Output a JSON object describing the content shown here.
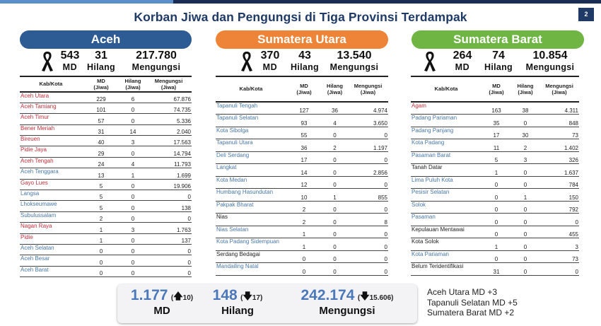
{
  "header": {
    "title": "Korban Jiwa dan Pengungsi di Tiga Provinsi Terdampak",
    "page_number": "2"
  },
  "colors": {
    "aceh": "#2d5b94",
    "sumut": "#ee8437",
    "sumbar": "#6fb544",
    "red_text": "#c0303b",
    "blue_text": "#4a78a8",
    "summary_number": "#4a78b8",
    "title": "#1f3a66"
  },
  "columns": {
    "kab": "Kab/Kota",
    "md": [
      "MD",
      "(Jiwa)"
    ],
    "hilang": [
      "Hilang",
      "(Jiwa)"
    ],
    "mengungsi": [
      "Mengungsi",
      "(Jiwa)"
    ]
  },
  "provinces": [
    {
      "name": "Aceh",
      "icon": "black-ribbon-icon",
      "md": "543",
      "md_label": "MD",
      "hilang": "31",
      "hilang_label": "Hilang",
      "mengungsi": "217.780",
      "mengungsi_label": "Mengungsi",
      "rows": [
        {
          "name": "Aceh Utara",
          "md": "229",
          "hilang": "6",
          "mengungsi": "67.876",
          "color": "red"
        },
        {
          "name": "Aceh Tamiang",
          "md": "101",
          "hilang": "0",
          "mengungsi": "74.735",
          "color": "red"
        },
        {
          "name": "Aceh Timur",
          "md": "57",
          "hilang": "0",
          "mengungsi": "5.336",
          "color": "red"
        },
        {
          "name": "Bener Meriah",
          "md": "31",
          "hilang": "14",
          "mengungsi": "2.040",
          "color": "red"
        },
        {
          "name": "Bireuen",
          "md": "40",
          "hilang": "3",
          "mengungsi": "17.563",
          "color": "red"
        },
        {
          "name": "Pidie Jaya",
          "md": "29",
          "hilang": "0",
          "mengungsi": "14.794",
          "color": "red"
        },
        {
          "name": "Aceh Tengah",
          "md": "24",
          "hilang": "4",
          "mengungsi": "11.793",
          "color": "red"
        },
        {
          "name": "Aceh Tenggara",
          "md": "13",
          "hilang": "1",
          "mengungsi": "1.699",
          "color": "blue"
        },
        {
          "name": "Gayo Lues",
          "md": "5",
          "hilang": "0",
          "mengungsi": "19.906",
          "color": "red"
        },
        {
          "name": "Langsa",
          "md": "5",
          "hilang": "0",
          "mengungsi": "0",
          "color": "blue"
        },
        {
          "name": "Lhokseumawe",
          "md": "5",
          "hilang": "0",
          "mengungsi": "138",
          "color": "blue"
        },
        {
          "name": "Subulussalam",
          "md": "2",
          "hilang": "0",
          "mengungsi": "0",
          "color": "blue"
        },
        {
          "name": "Nagan Raya",
          "md": "1",
          "hilang": "3",
          "mengungsi": "1.763",
          "color": "red"
        },
        {
          "name": "Pidie",
          "md": "1",
          "hilang": "0",
          "mengungsi": "137",
          "color": "red"
        },
        {
          "name": "Aceh Selatan",
          "md": "0",
          "hilang": "0",
          "mengungsi": "0",
          "color": "blue"
        },
        {
          "name": "Aceh Besar",
          "md": "0",
          "hilang": "0",
          "mengungsi": "0",
          "color": "blue"
        },
        {
          "name": "Aceh Barat",
          "md": "0",
          "hilang": "0",
          "mengungsi": "0",
          "color": "blue"
        }
      ]
    },
    {
      "name": "Sumatera Utara",
      "icon": "black-ribbon-icon",
      "md": "370",
      "md_label": "MD",
      "hilang": "43",
      "hilang_label": "Hilang",
      "mengungsi": "13.540",
      "mengungsi_label": "Mengungsi",
      "rows": [
        {
          "name": "Tapanuli Tengah",
          "md": "127",
          "hilang": "36",
          "mengungsi": "4.974",
          "color": "blue"
        },
        {
          "name": "Tapanuli Selatan",
          "md": "93",
          "hilang": "4",
          "mengungsi": "3.650",
          "color": "blue"
        },
        {
          "name": "Kota Sibolga",
          "md": "55",
          "hilang": "0",
          "mengungsi": "0",
          "color": "blue"
        },
        {
          "name": "Tapanuli Utara",
          "md": "36",
          "hilang": "2",
          "mengungsi": "1.197",
          "color": "blue"
        },
        {
          "name": "Deli Serdang",
          "md": "17",
          "hilang": "0",
          "mengungsi": "0",
          "color": "blue"
        },
        {
          "name": "Langkat",
          "md": "14",
          "hilang": "0",
          "mengungsi": "2.856",
          "color": "blue"
        },
        {
          "name": "Kota Medan",
          "md": "12",
          "hilang": "0",
          "mengungsi": "0",
          "color": "blue"
        },
        {
          "name": "Humbang Hasundutan",
          "md": "10",
          "hilang": "1",
          "mengungsi": "855",
          "color": "blue"
        },
        {
          "name": "Pakpak Bharat",
          "md": "2",
          "hilang": "0",
          "mengungsi": "0",
          "color": "blue"
        },
        {
          "name": "Nias",
          "md": "2",
          "hilang": "0",
          "mengungsi": "8",
          "color": "black"
        },
        {
          "name": "Nias Selatan",
          "md": "1",
          "hilang": "0",
          "mengungsi": "0",
          "color": "blue"
        },
        {
          "name": "Kota Padang Sidempuan",
          "md": "1",
          "hilang": "0",
          "mengungsi": "0",
          "color": "blue"
        },
        {
          "name": "Serdang Bedagai",
          "md": "0",
          "hilang": "0",
          "mengungsi": "0",
          "color": "black"
        },
        {
          "name": "Mandailing Natal",
          "md": "0",
          "hilang": "0",
          "mengungsi": "0",
          "color": "blue"
        }
      ]
    },
    {
      "name": "Sumatera Barat",
      "icon": "black-ribbon-icon",
      "md": "264",
      "md_label": "MD",
      "hilang": "74",
      "hilang_label": "Hilang",
      "mengungsi": "10.854",
      "mengungsi_label": "Mengungsi",
      "rows": [
        {
          "name": "Agam",
          "md": "163",
          "hilang": "38",
          "mengungsi": "4.311",
          "color": "red"
        },
        {
          "name": "Padang Pariaman",
          "md": "35",
          "hilang": "0",
          "mengungsi": "848",
          "color": "blue"
        },
        {
          "name": "Padang Panjang",
          "md": "17",
          "hilang": "30",
          "mengungsi": "73",
          "color": "blue"
        },
        {
          "name": "Kota Padang",
          "md": "11",
          "hilang": "2",
          "mengungsi": "1.402",
          "color": "blue"
        },
        {
          "name": "Pasaman Barat",
          "md": "5",
          "hilang": "3",
          "mengungsi": "326",
          "color": "blue"
        },
        {
          "name": "Tanah Datar",
          "md": "1",
          "hilang": "0",
          "mengungsi": "1.637",
          "color": "black"
        },
        {
          "name": "Lima Puluh Kota",
          "md": "0",
          "hilang": "0",
          "mengungsi": "784",
          "color": "blue"
        },
        {
          "name": "Pesisir Selatan",
          "md": "0",
          "hilang": "1",
          "mengungsi": "150",
          "color": "blue"
        },
        {
          "name": "Solok",
          "md": "0",
          "hilang": "0",
          "mengungsi": "792",
          "color": "blue"
        },
        {
          "name": "Pasaman",
          "md": "0",
          "hilang": "0",
          "mengungsi": "0",
          "color": "blue"
        },
        {
          "name": "Kepulauan Mentawai",
          "md": "0",
          "hilang": "0",
          "mengungsi": "455",
          "color": "black"
        },
        {
          "name": "Kota Solok",
          "md": "1",
          "hilang": "0",
          "mengungsi": "3",
          "color": "black"
        },
        {
          "name": "Kota Pariaman",
          "md": "0",
          "hilang": "0",
          "mengungsi": "73",
          "color": "blue"
        },
        {
          "name": "Belum Teridentifikasi",
          "md": "31",
          "hilang": "0",
          "mengungsi": "0",
          "color": "black"
        }
      ]
    }
  ],
  "summary": {
    "md": {
      "value": "1.177",
      "delta_open": "(",
      "arrow": "up-arrow-icon",
      "delta": "10)",
      "label": "MD"
    },
    "hilang": {
      "value": "148",
      "delta_open": "(",
      "arrow": "down-arrow-icon",
      "delta": "17)",
      "label": "Hilang"
    },
    "mengungsi": {
      "value": "242.174",
      "delta_open": "(",
      "arrow": "down-arrow-icon",
      "delta": "15.606)",
      "label": "Mengungsi"
    }
  },
  "notes": [
    "Aceh Utara MD +3",
    "Tapanuli Selatan MD +5",
    "Sumatera Barat MD +2"
  ]
}
